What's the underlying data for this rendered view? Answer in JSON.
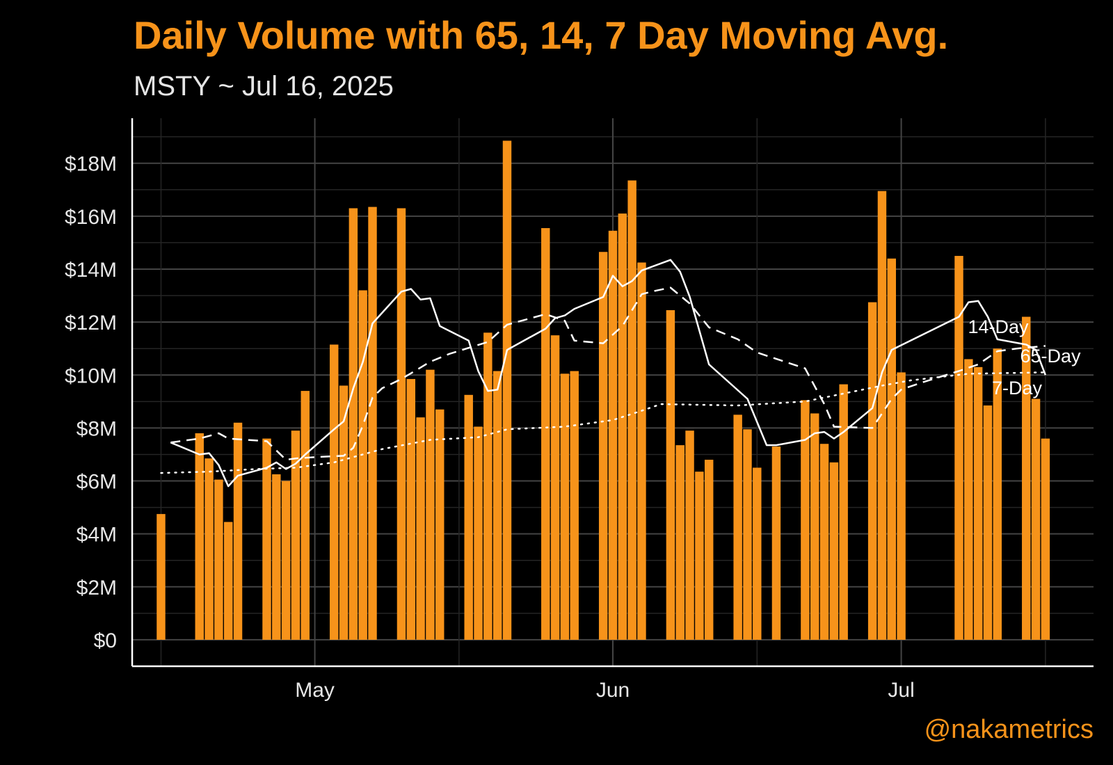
{
  "header": {
    "title": "Daily Volume with 65, 14, 7 Day Moving Avg.",
    "subtitle": "MSTY ~ Jul 16, 2025"
  },
  "footer": {
    "credit": "@nakametrics"
  },
  "colors": {
    "background": "#000000",
    "bars": "#F7931A",
    "lines": "#FFFFFF",
    "grid": "#444444",
    "text": "#E6E6E6",
    "accent": "#F7931A"
  },
  "chart_data": {
    "type": "bar",
    "x_axis": {
      "type": "date",
      "range": [
        "2025-04-12",
        "2025-07-21"
      ],
      "ticks": [
        {
          "date": "2025-05-01",
          "label": "May"
        },
        {
          "date": "2025-06-01",
          "label": "Jun"
        },
        {
          "date": "2025-07-01",
          "label": "Jul"
        }
      ]
    },
    "y_axis": {
      "range": [
        -1000000,
        19700000
      ],
      "unit": "$",
      "ticks": [
        {
          "value": 0,
          "label": "$0"
        },
        {
          "value": 2000000,
          "label": "$2M"
        },
        {
          "value": 4000000,
          "label": "$4M"
        },
        {
          "value": 6000000,
          "label": "$6M"
        },
        {
          "value": 8000000,
          "label": "$8M"
        },
        {
          "value": 10000000,
          "label": "$10M"
        },
        {
          "value": 12000000,
          "label": "$12M"
        },
        {
          "value": 14000000,
          "label": "$14M"
        },
        {
          "value": 16000000,
          "label": "$16M"
        },
        {
          "value": 18000000,
          "label": "$18M"
        }
      ]
    },
    "grid": true,
    "legend": "none",
    "bars": [
      [
        "2025-04-15",
        4.75
      ],
      [
        "2025-04-19",
        7.8
      ],
      [
        "2025-04-20",
        6.85
      ],
      [
        "2025-04-21",
        6.05
      ],
      [
        "2025-04-22",
        4.45
      ],
      [
        "2025-04-23",
        8.2
      ],
      [
        "2025-04-26",
        7.6
      ],
      [
        "2025-04-27",
        6.25
      ],
      [
        "2025-04-28",
        6.0
      ],
      [
        "2025-04-29",
        7.9
      ],
      [
        "2025-04-30",
        9.4
      ],
      [
        "2025-05-03",
        11.15
      ],
      [
        "2025-05-04",
        9.6
      ],
      [
        "2025-05-05",
        16.3
      ],
      [
        "2025-05-06",
        13.2
      ],
      [
        "2025-05-07",
        16.35
      ],
      [
        "2025-05-10",
        16.3
      ],
      [
        "2025-05-11",
        9.85
      ],
      [
        "2025-05-12",
        8.4
      ],
      [
        "2025-05-13",
        10.2
      ],
      [
        "2025-05-14",
        8.7
      ],
      [
        "2025-05-17",
        9.25
      ],
      [
        "2025-05-18",
        8.05
      ],
      [
        "2025-05-19",
        11.6
      ],
      [
        "2025-05-20",
        10.15
      ],
      [
        "2025-05-21",
        18.85
      ],
      [
        "2025-05-25",
        15.55
      ],
      [
        "2025-05-26",
        11.5
      ],
      [
        "2025-05-27",
        10.05
      ],
      [
        "2025-05-28",
        10.15
      ],
      [
        "2025-05-31",
        14.65
      ],
      [
        "2025-06-01",
        15.45
      ],
      [
        "2025-06-02",
        16.1
      ],
      [
        "2025-06-03",
        17.35
      ],
      [
        "2025-06-04",
        14.25
      ],
      [
        "2025-06-07",
        12.45
      ],
      [
        "2025-06-08",
        7.35
      ],
      [
        "2025-06-09",
        7.9
      ],
      [
        "2025-06-10",
        6.35
      ],
      [
        "2025-06-11",
        6.8
      ],
      [
        "2025-06-14",
        8.5
      ],
      [
        "2025-06-15",
        7.95
      ],
      [
        "2025-06-16",
        6.5
      ],
      [
        "2025-06-18",
        7.3
      ],
      [
        "2025-06-21",
        9.05
      ],
      [
        "2025-06-22",
        8.55
      ],
      [
        "2025-06-23",
        7.4
      ],
      [
        "2025-06-24",
        6.7
      ],
      [
        "2025-06-25",
        9.65
      ],
      [
        "2025-06-28",
        12.75
      ],
      [
        "2025-06-29",
        16.95
      ],
      [
        "2025-06-30",
        14.4
      ],
      [
        "2025-07-01",
        10.1
      ],
      [
        "2025-07-07",
        14.5
      ],
      [
        "2025-07-08",
        10.6
      ],
      [
        "2025-07-09",
        10.3
      ],
      [
        "2025-07-10",
        8.85
      ],
      [
        "2025-07-11",
        11.0
      ],
      [
        "2025-07-14",
        12.2
      ],
      [
        "2025-07-15",
        9.1
      ],
      [
        "2025-07-16",
        7.6
      ]
    ],
    "bars_unit": "$M",
    "series": [
      {
        "name": "14-Day",
        "style": "dashed",
        "points": [
          [
            "2025-04-16",
            7.45
          ],
          [
            "2025-04-18",
            7.55
          ],
          [
            "2025-04-19",
            7.6
          ],
          [
            "2025-04-21",
            7.8
          ],
          [
            "2025-04-22",
            7.6
          ],
          [
            "2025-04-26",
            7.5
          ],
          [
            "2025-04-28",
            6.8
          ],
          [
            "2025-04-29",
            6.85
          ],
          [
            "2025-05-01",
            6.9
          ],
          [
            "2025-05-04",
            6.95
          ],
          [
            "2025-05-05",
            7.25
          ],
          [
            "2025-05-06",
            8.1
          ],
          [
            "2025-05-07",
            9.15
          ],
          [
            "2025-05-08",
            9.5
          ],
          [
            "2025-05-10",
            9.85
          ],
          [
            "2025-05-13",
            10.5
          ],
          [
            "2025-05-15",
            10.8
          ],
          [
            "2025-05-19",
            11.25
          ],
          [
            "2025-05-21",
            11.9
          ],
          [
            "2025-05-25",
            12.3
          ],
          [
            "2025-05-27",
            12.05
          ],
          [
            "2025-05-28",
            11.3
          ],
          [
            "2025-05-31",
            11.2
          ],
          [
            "2025-06-02",
            11.85
          ],
          [
            "2025-06-04",
            13.05
          ],
          [
            "2025-06-05",
            13.15
          ],
          [
            "2025-06-07",
            13.3
          ],
          [
            "2025-06-09",
            12.7
          ],
          [
            "2025-06-11",
            11.8
          ],
          [
            "2025-06-14",
            11.35
          ],
          [
            "2025-06-16",
            10.85
          ],
          [
            "2025-06-21",
            10.25
          ],
          [
            "2025-06-23",
            8.9
          ],
          [
            "2025-06-24",
            8.05
          ],
          [
            "2025-06-28",
            8.0
          ],
          [
            "2025-06-30",
            9.1
          ],
          [
            "2025-07-01",
            9.45
          ],
          [
            "2025-07-03",
            9.7
          ],
          [
            "2025-07-07",
            10.15
          ],
          [
            "2025-07-09",
            10.4
          ],
          [
            "2025-07-11",
            10.9
          ],
          [
            "2025-07-13",
            11.0
          ],
          [
            "2025-07-16",
            11.1
          ]
        ]
      },
      {
        "name": "65-Day",
        "style": "dotted",
        "points": [
          [
            "2025-04-15",
            6.3
          ],
          [
            "2025-04-20",
            6.35
          ],
          [
            "2025-04-25",
            6.45
          ],
          [
            "2025-04-29",
            6.5
          ],
          [
            "2025-05-03",
            6.7
          ],
          [
            "2025-05-08",
            7.2
          ],
          [
            "2025-05-13",
            7.55
          ],
          [
            "2025-05-18",
            7.65
          ],
          [
            "2025-05-21",
            7.95
          ],
          [
            "2025-05-27",
            8.05
          ],
          [
            "2025-06-01",
            8.3
          ],
          [
            "2025-06-04",
            8.65
          ],
          [
            "2025-06-06",
            8.9
          ],
          [
            "2025-06-14",
            8.85
          ],
          [
            "2025-06-21",
            9.0
          ],
          [
            "2025-06-25",
            9.3
          ],
          [
            "2025-06-29",
            9.6
          ],
          [
            "2025-07-02",
            9.8
          ],
          [
            "2025-07-08",
            10.05
          ],
          [
            "2025-07-16",
            10.1
          ]
        ]
      },
      {
        "name": "7-Day",
        "style": "solid",
        "points": [
          [
            "2025-04-16",
            7.45
          ],
          [
            "2025-04-19",
            7.0
          ],
          [
            "2025-04-20",
            7.05
          ],
          [
            "2025-04-21",
            6.6
          ],
          [
            "2025-04-22",
            5.8
          ],
          [
            "2025-04-23",
            6.2
          ],
          [
            "2025-04-26",
            6.5
          ],
          [
            "2025-04-27",
            6.7
          ],
          [
            "2025-04-28",
            6.45
          ],
          [
            "2025-04-29",
            6.65
          ],
          [
            "2025-04-30",
            7.0
          ],
          [
            "2025-05-03",
            7.95
          ],
          [
            "2025-05-04",
            8.25
          ],
          [
            "2025-05-05",
            9.5
          ],
          [
            "2025-05-06",
            10.5
          ],
          [
            "2025-05-07",
            11.95
          ],
          [
            "2025-05-10",
            13.15
          ],
          [
            "2025-05-11",
            13.25
          ],
          [
            "2025-05-12",
            12.85
          ],
          [
            "2025-05-13",
            12.9
          ],
          [
            "2025-05-14",
            11.85
          ],
          [
            "2025-05-17",
            11.3
          ],
          [
            "2025-05-18",
            10.15
          ],
          [
            "2025-05-19",
            9.4
          ],
          [
            "2025-05-20",
            9.45
          ],
          [
            "2025-05-21",
            10.95
          ],
          [
            "2025-05-25",
            11.75
          ],
          [
            "2025-05-26",
            12.15
          ],
          [
            "2025-05-27",
            12.25
          ],
          [
            "2025-05-28",
            12.5
          ],
          [
            "2025-05-31",
            12.95
          ],
          [
            "2025-06-01",
            13.75
          ],
          [
            "2025-06-02",
            13.35
          ],
          [
            "2025-06-03",
            13.55
          ],
          [
            "2025-06-04",
            13.95
          ],
          [
            "2025-06-07",
            14.35
          ],
          [
            "2025-06-08",
            13.9
          ],
          [
            "2025-06-09",
            12.95
          ],
          [
            "2025-06-11",
            10.4
          ],
          [
            "2025-06-15",
            9.1
          ],
          [
            "2025-06-17",
            7.35
          ],
          [
            "2025-06-18",
            7.35
          ],
          [
            "2025-06-21",
            7.55
          ],
          [
            "2025-06-22",
            7.8
          ],
          [
            "2025-06-23",
            7.85
          ],
          [
            "2025-06-24",
            7.6
          ],
          [
            "2025-06-25",
            7.85
          ],
          [
            "2025-06-28",
            8.75
          ],
          [
            "2025-06-29",
            10.1
          ],
          [
            "2025-06-30",
            10.95
          ],
          [
            "2025-07-07",
            12.2
          ],
          [
            "2025-07-08",
            12.75
          ],
          [
            "2025-07-09",
            12.8
          ],
          [
            "2025-07-10",
            12.2
          ],
          [
            "2025-07-11",
            11.35
          ],
          [
            "2025-07-14",
            11.15
          ],
          [
            "2025-07-15",
            10.95
          ],
          [
            "2025-07-16",
            10.0
          ]
        ]
      }
    ]
  }
}
